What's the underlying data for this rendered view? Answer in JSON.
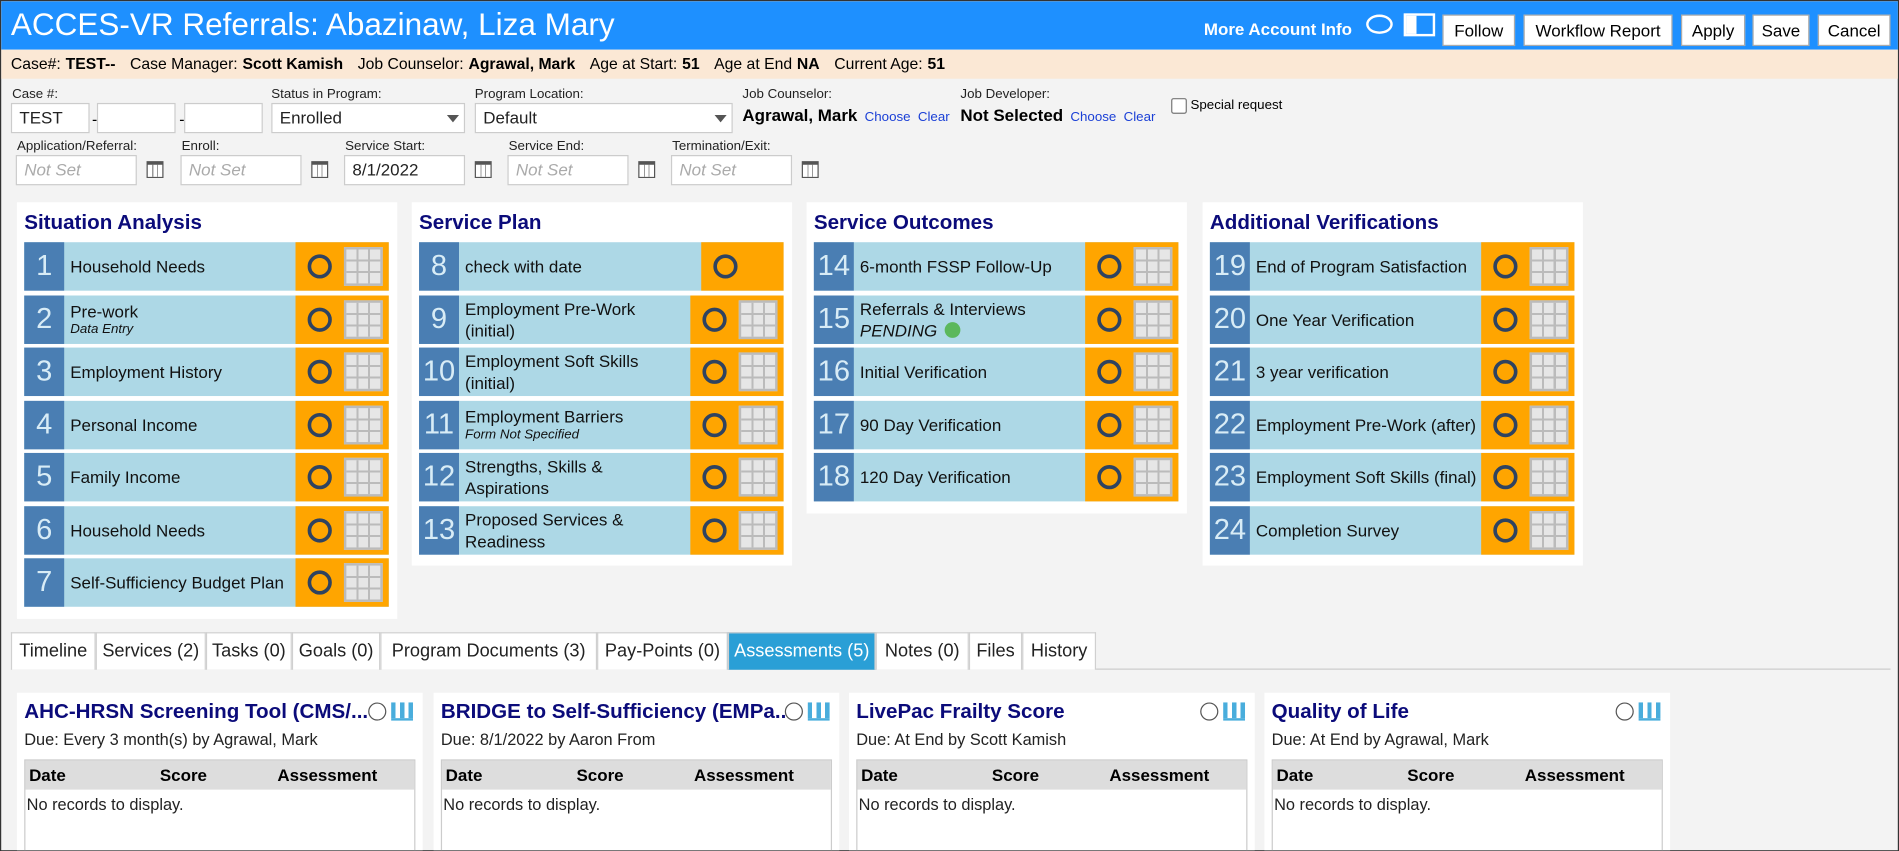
{
  "header": {
    "title": "ACCES-VR Referrals: Abazinaw, Liza Mary",
    "more_info": "More Account Info",
    "buttons": [
      "Follow",
      "Workflow Report",
      "Apply",
      "Save",
      "Cancel"
    ]
  },
  "case_bar": [
    {
      "label": "Case#:",
      "value": "TEST--"
    },
    {
      "label": "Case Manager:",
      "value": "Scott Kamish"
    },
    {
      "label": "Job Counselor:",
      "value": "Agrawal, Mark"
    },
    {
      "label": "Age at Start:",
      "value": 51
    },
    {
      "label": "Age at End",
      "value": "NA"
    },
    {
      "label": "Current Age:",
      "value": 51
    }
  ],
  "form": {
    "case_no": {
      "label": "Case #:",
      "value": "TEST",
      "separator": "-"
    },
    "status": {
      "label": "Status in Program:",
      "value": "Enrolled"
    },
    "location": {
      "label": "Program Location:",
      "value": "Default"
    },
    "job_counselor": {
      "label": "Job Counselor:",
      "value": "Agrawal, Mark",
      "links": [
        "Choose",
        "Clear"
      ]
    },
    "job_developer": {
      "label": "Job Developer:",
      "value": "Not Selected",
      "links": [
        "Choose",
        "Clear"
      ]
    },
    "special_request": "Special request",
    "dates": [
      {
        "label": "Application/Referral:",
        "value": "Not Set",
        "placeholder": true
      },
      {
        "label": "Enroll:",
        "value": "Not Set",
        "placeholder": true
      },
      {
        "label": "Service Start:",
        "value": "8/1/2022",
        "placeholder": false
      },
      {
        "label": "Service End:",
        "value": "Not Set",
        "placeholder": true
      },
      {
        "label": "Termination/Exit:",
        "value": "Not Set",
        "placeholder": true
      }
    ]
  },
  "sections": [
    {
      "title": "Situation Analysis",
      "items": [
        {
          "num": 1,
          "label": "Household Needs"
        },
        {
          "num": 2,
          "label": "Pre-work",
          "note": "Data Entry"
        },
        {
          "num": 3,
          "label": "Employment History"
        },
        {
          "num": 4,
          "label": "Personal Income"
        },
        {
          "num": 5,
          "label": "Family Income"
        },
        {
          "num": 6,
          "label": "Household Needs"
        },
        {
          "num": 7,
          "label": "Self-Sufficiency Budget Plan"
        }
      ]
    },
    {
      "title": "Service Plan",
      "items": [
        {
          "num": 8,
          "label": "check with date",
          "grid": false
        },
        {
          "num": 9,
          "label": "Employment Pre-Work (initial)"
        },
        {
          "num": 10,
          "label": "Employment Soft Skills (initial)"
        },
        {
          "num": 11,
          "label": "Employment Barriers",
          "note": "Form Not Specified"
        },
        {
          "num": 12,
          "label": "Strengths, Skills & Aspirations"
        },
        {
          "num": 13,
          "label": "Proposed Services & Readiness"
        }
      ]
    },
    {
      "title": "Service Outcomes",
      "items": [
        {
          "num": 14,
          "label": "6-month FSSP Follow-Up"
        },
        {
          "num": 15,
          "label": "Referrals & Interviews",
          "status": "PENDING"
        },
        {
          "num": 16,
          "label": "Initial Verification"
        },
        {
          "num": 17,
          "label": "90 Day Verification"
        },
        {
          "num": 18,
          "label": "120 Day Verification"
        }
      ]
    },
    {
      "title": "Additional Verifications",
      "items": [
        {
          "num": 19,
          "label": "End of Program Satisfaction"
        },
        {
          "num": 20,
          "label": "One Year Verification"
        },
        {
          "num": 21,
          "label": "3 year verification"
        },
        {
          "num": 22,
          "label": "Employment Pre-Work (after)"
        },
        {
          "num": 23,
          "label": "Employment Soft Skills (final)"
        },
        {
          "num": 24,
          "label": "Completion Survey"
        }
      ]
    }
  ],
  "tabs": {
    "items": [
      "Timeline",
      "Services (2)",
      "Tasks (0)",
      "Goals (0)",
      "Program Documents (3)",
      "Pay-Points (0)",
      "Assessments (5)",
      "Notes (0)",
      "Files",
      "History"
    ],
    "active": 6
  },
  "assessments": [
    {
      "title": "AHC-HRSN Screening Tool (CMS/...",
      "due": "Due: Every 3 month(s) by Agrawal, Mark",
      "columns": [
        "Date",
        "Score",
        "Assessment"
      ],
      "empty": "No records to display."
    },
    {
      "title": "BRIDGE to Self-Sufficiency (EMPa...",
      "due": "Due: 8/1/2022 by Aaron From",
      "columns": [
        "Date",
        "Score",
        "Assessment"
      ],
      "empty": "No records to display."
    },
    {
      "title": "LivePac Frailty Score",
      "due": "Due: At End by Scott Kamish",
      "columns": [
        "Date",
        "Score",
        "Assessment"
      ],
      "empty": "No records to display."
    },
    {
      "title": "Quality of Life",
      "due": "Due: At End by Agrawal, Mark",
      "columns": [
        "Date",
        "Score",
        "Assessment"
      ],
      "empty": "No records to display."
    }
  ]
}
